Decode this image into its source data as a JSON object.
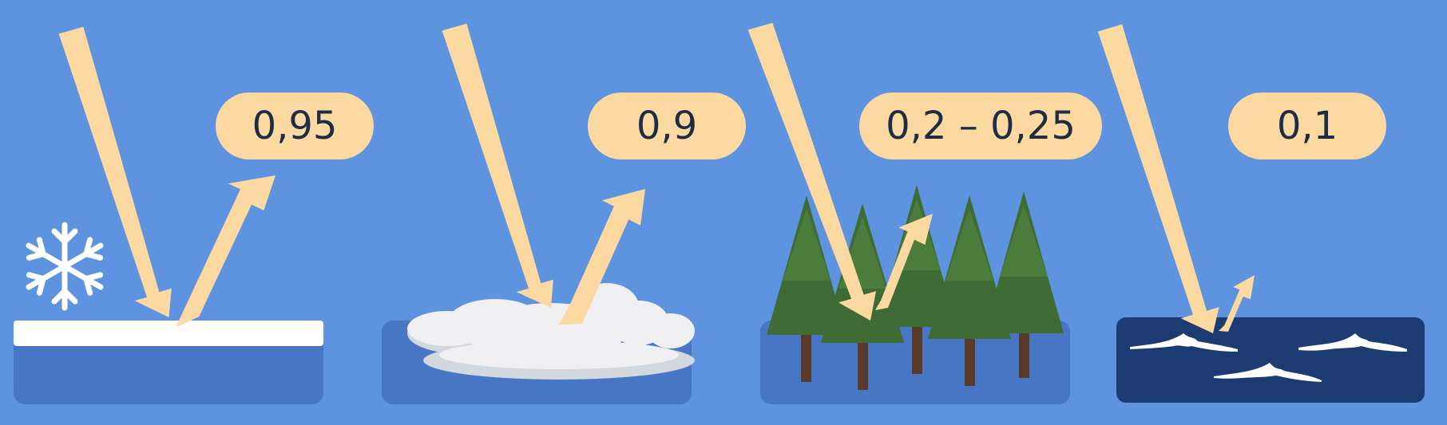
{
  "colors": {
    "background": "#5e93e0",
    "arrow": "#fcd9a0",
    "label_fill": "#fcd9a0",
    "label_text": "#1d2d44",
    "ground": "#4676c4",
    "snow_layer": "#ffffff",
    "cloud": "#f0f0f3",
    "cloud_shade": "#d3d7de",
    "tree_foliage": "#3f6b34",
    "tree_trunk": "#5a3a28",
    "water": "#1c3b72",
    "wave_crest": "#ffffff"
  },
  "panels": [
    {
      "surface": "snow",
      "icon": "snowflake-icon",
      "albedo": "0,95"
    },
    {
      "surface": "cloud",
      "icon": "cloud-icon",
      "albedo": "0,9"
    },
    {
      "surface": "forest",
      "icon": "conifer-tree-icon",
      "albedo": "0,2 – 0,25"
    },
    {
      "surface": "sea",
      "icon": "wave-icon",
      "albedo": "0,1"
    }
  ]
}
